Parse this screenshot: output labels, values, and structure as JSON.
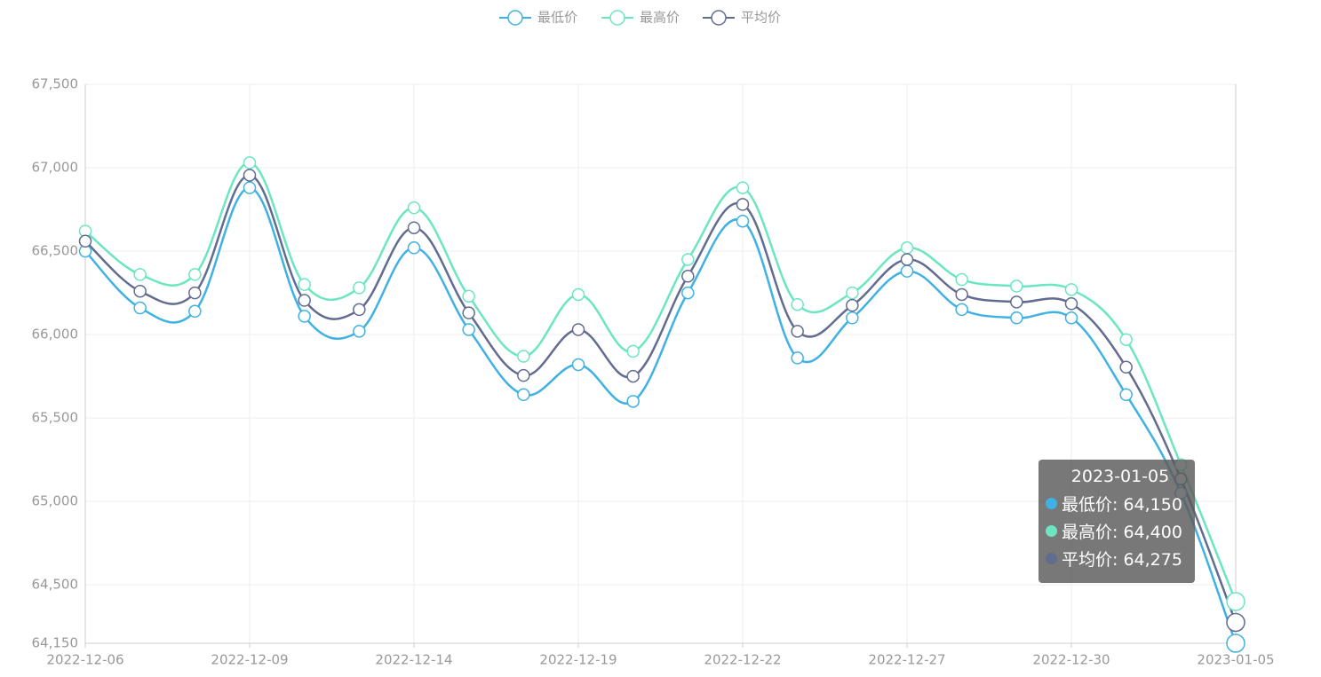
{
  "chart_data": {
    "type": "line",
    "categories": [
      "2022-12-06",
      null,
      null,
      "2022-12-09",
      null,
      null,
      "2022-12-14",
      null,
      null,
      "2022-12-19",
      null,
      null,
      "2022-12-22",
      null,
      null,
      "2022-12-27",
      null,
      null,
      "2022-12-30",
      null,
      null,
      "2023-01-05"
    ],
    "series": [
      {
        "name": "最低价",
        "color": "#3fb1e3",
        "values": [
          66500,
          66160,
          66140,
          66880,
          66110,
          66020,
          66520,
          66030,
          65640,
          65820,
          65600,
          66250,
          66680,
          65860,
          66100,
          66380,
          66150,
          66100,
          66100,
          65640,
          65050,
          64150
        ]
      },
      {
        "name": "最高价",
        "color": "#6be6c1",
        "values": [
          66620,
          66360,
          66360,
          67030,
          66300,
          66280,
          66760,
          66230,
          65870,
          66240,
          65900,
          66450,
          66880,
          66180,
          66250,
          66520,
          66330,
          66290,
          66270,
          65970,
          65220,
          64400
        ]
      },
      {
        "name": "平均价",
        "color": "#626c91",
        "values": [
          66560,
          66260,
          66250,
          66955,
          66205,
          66150,
          66640,
          66130,
          65755,
          66030,
          65750,
          66350,
          66780,
          66020,
          66175,
          66450,
          66240,
          66195,
          66185,
          65805,
          65135,
          64275
        ]
      }
    ],
    "ylim": [
      64150,
      67500
    ],
    "yticks": [
      {
        "value": 64150,
        "label": "64,150"
      },
      {
        "value": 64500,
        "label": "64,500"
      },
      {
        "value": 65000,
        "label": "65,000"
      },
      {
        "value": 65500,
        "label": "65,500"
      },
      {
        "value": 66000,
        "label": "66,000"
      },
      {
        "value": 66500,
        "label": "66,500"
      },
      {
        "value": 67000,
        "label": "67,000"
      },
      {
        "value": 67500,
        "label": "67,500"
      }
    ],
    "grid": true,
    "smooth": true,
    "legend": "top",
    "tooltip": {
      "rows": [
        "最低价: 64,150",
        "最高价: 64,400",
        "平均价: 64,275"
      ]
    }
  }
}
